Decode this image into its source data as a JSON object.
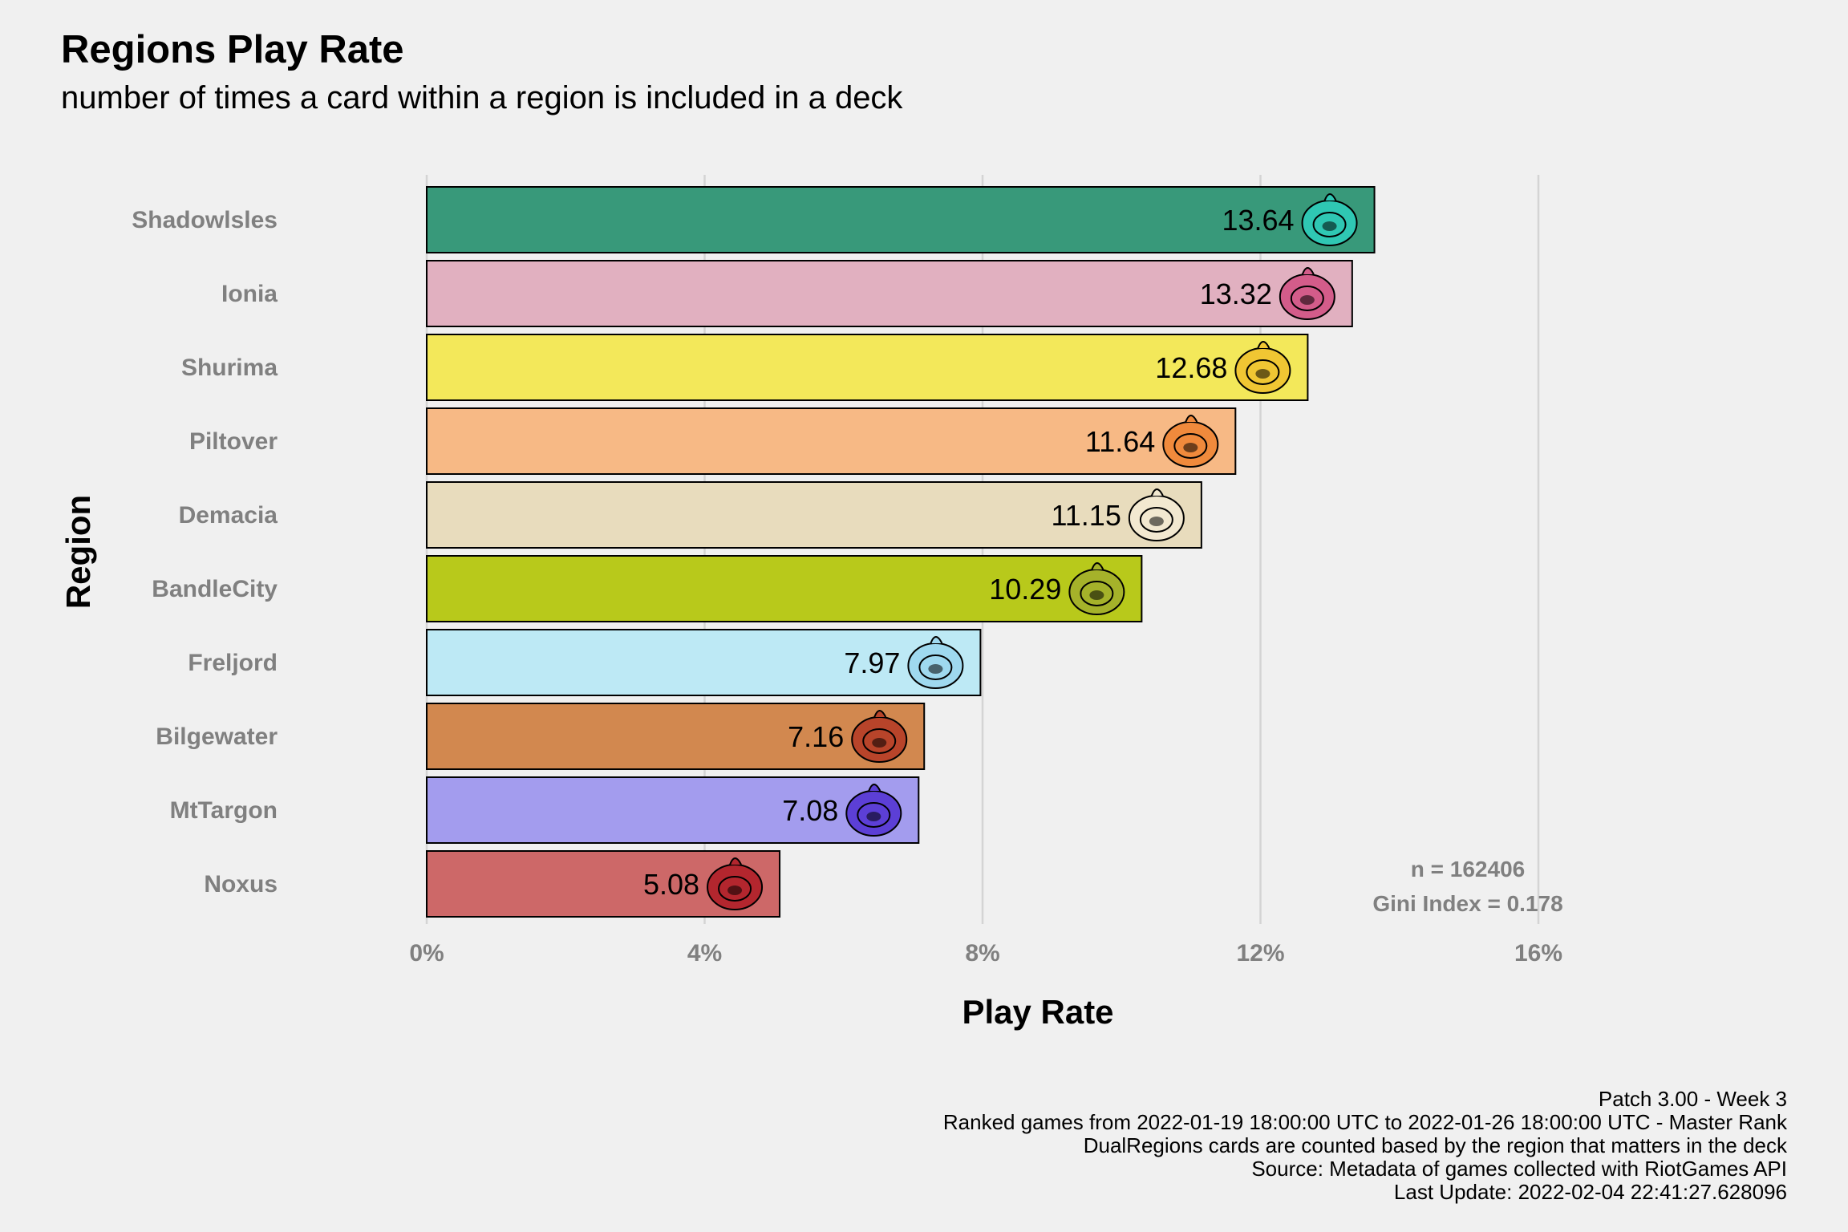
{
  "header": {
    "title": "Regions Play Rate",
    "subtitle": "number of times a card within a region is included in a deck"
  },
  "chart_data": {
    "type": "bar",
    "orientation": "horizontal",
    "xlabel": "Play Rate",
    "ylabel": "Region",
    "xlim": [
      0,
      16
    ],
    "xticks": [
      "0%",
      "4%",
      "8%",
      "12%",
      "16%"
    ],
    "grid": true,
    "categories": [
      "Shadowlsles",
      "Ionia",
      "Shurima",
      "Piltover",
      "Demacia",
      "BandleCity",
      "Freljord",
      "Bilgewater",
      "MtTargon",
      "Noxus"
    ],
    "values": [
      13.64,
      13.32,
      12.68,
      11.64,
      11.15,
      10.29,
      7.97,
      7.16,
      7.08,
      5.08
    ],
    "value_labels": [
      "13.64",
      "13.32",
      "12.68",
      "11.64",
      "11.15",
      "10.29",
      "7.97",
      "7.16",
      "7.08",
      "5.08"
    ],
    "colors": [
      "#38997a",
      "#e1b0c0",
      "#f3e85a",
      "#f7b985",
      "#e8dcbd",
      "#b8c91b",
      "#bde9f5",
      "#d2884f",
      "#a39cee",
      "#cd6868"
    ],
    "icons": [
      "shadow-isles-icon",
      "ionia-icon",
      "shurima-icon",
      "piltover-icon",
      "demacia-icon",
      "bandle-city-icon",
      "freljord-icon",
      "bilgewater-icon",
      "mt-targon-icon",
      "noxus-icon"
    ],
    "icon_colors": [
      "#2fc7b3",
      "#d35c8a",
      "#f0c633",
      "#f08a3c",
      "#f2e8d0",
      "#a5b22a",
      "#9fd9ef",
      "#b8442a",
      "#5c3fd6",
      "#b3262e"
    ],
    "annotations": [
      "n = 162406",
      "Gini Index = 0.178"
    ]
  },
  "caption": [
    "Patch 3.00 - Week 3",
    "Ranked games from 2022-01-19 18:00:00 UTC to 2022-01-26 18:00:00 UTC - Master Rank",
    "DualRegions cards are counted based by the region that matters in the deck",
    "Source: Metadata of games collected with RiotGames API",
    "Last Update: 2022-02-04 22:41:27.628096"
  ]
}
